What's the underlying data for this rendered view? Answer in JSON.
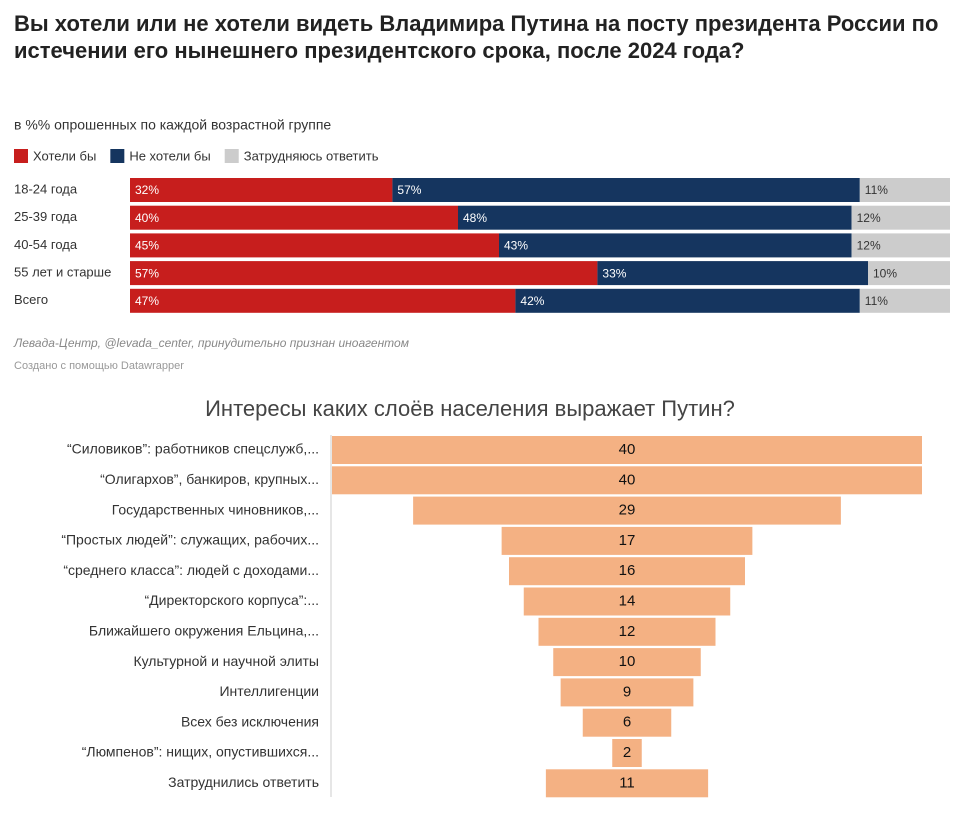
{
  "chart_data": [
    {
      "type": "bar",
      "stacked": true,
      "orientation": "horizontal",
      "title": "Вы хотели или не хотели видеть Владимира Путина на посту президента России по истечении его нынешнего президентского срока, после 2024 года?",
      "subtitle": "в %% опрошенных по каждой возрастной группе",
      "categories": [
        "18-24 года",
        "25-39 года",
        "40-54 года",
        "55 лет и старше",
        "Всего"
      ],
      "xlim": [
        0,
        100
      ],
      "series": [
        {
          "name": "Хотели бы",
          "color": "#c71e1d",
          "values": [
            32,
            40,
            45,
            57,
            47
          ],
          "value_labels": [
            "32%",
            "40%",
            "45%",
            "57%",
            "47%"
          ]
        },
        {
          "name": "Не хотели бы",
          "color": "#15355f",
          "values": [
            57,
            48,
            43,
            33,
            42
          ],
          "value_labels": [
            "57%",
            "48%",
            "43%",
            "33%",
            "42%"
          ]
        },
        {
          "name": "Затрудняюсь ответить",
          "color": "#cccccc",
          "values": [
            11,
            12,
            12,
            10,
            11
          ],
          "value_labels": [
            "11%",
            "12%",
            "12%",
            "10%",
            "11%"
          ]
        }
      ],
      "source": "Левада-Центр, @levada_center, принудительно признан иноагентом",
      "credit": "Создано с помощью Datawrapper"
    },
    {
      "type": "funnel",
      "title": "Интересы каких слоёв населения выражает Путин?",
      "color": "#f4b183",
      "xlim": [
        0,
        40
      ],
      "categories": [
        "“Силовиков”: работников спецслужб,...",
        "“Олигархов”, банкиров, крупных...",
        "Государственных чиновников,...",
        "“Простых людей”: служащих, рабочих...",
        "“среднего класса”: людей с доходами...",
        "“Директорского корпуса”:...",
        "Ближайшего окружения Ельцина,...",
        "Культурной и научной элиты",
        "Интеллигенции",
        "Всех без исключения",
        "“Люмпенов”: нищих, опустившихся...",
        "Затруднились ответить"
      ],
      "values": [
        40,
        40,
        29,
        17,
        16,
        14,
        12,
        10,
        9,
        6,
        2,
        11
      ]
    }
  ]
}
